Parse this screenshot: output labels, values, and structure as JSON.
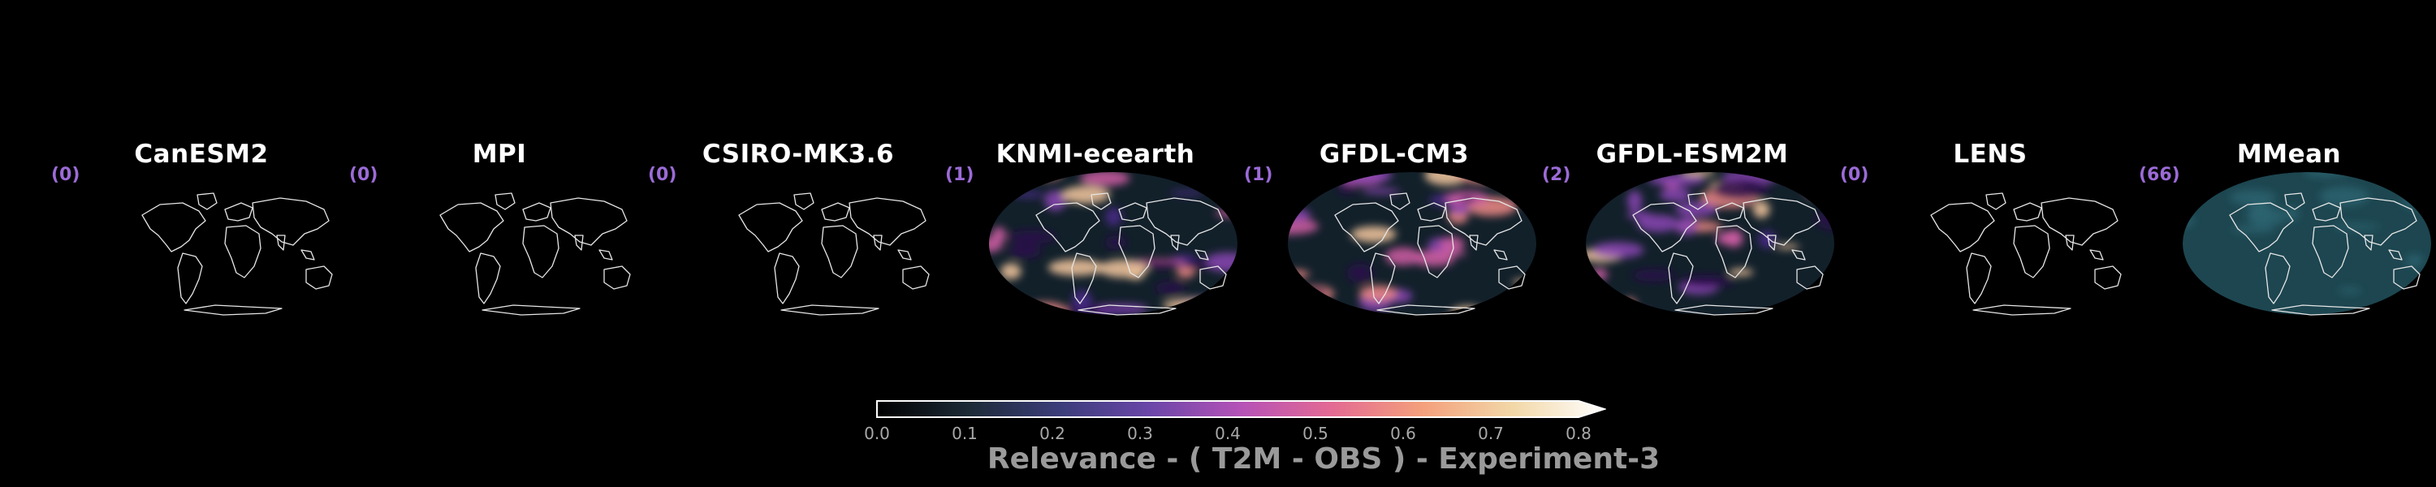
{
  "panels": [
    {
      "title": "CanESM2",
      "count": "(0)",
      "heat": false
    },
    {
      "title": "MPI",
      "count": "(0)",
      "heat": false
    },
    {
      "title": "CSIRO-MK3.6",
      "count": "(0)",
      "heat": false
    },
    {
      "title": "KNMI-ecearth",
      "count": "(1)",
      "heat": true
    },
    {
      "title": "GFDL-CM3",
      "count": "(1)",
      "heat": true
    },
    {
      "title": "GFDL-ESM2M",
      "count": "(2)",
      "heat": true
    },
    {
      "title": "LENS",
      "count": "(0)",
      "heat": false
    },
    {
      "title": "MMean",
      "count": "(66)",
      "heat": true
    }
  ],
  "colorbar": {
    "ticks": [
      "0.0",
      "0.1",
      "0.2",
      "0.3",
      "0.4",
      "0.5",
      "0.6",
      "0.7",
      "0.8"
    ],
    "label": "Relevance - ( T2M - OBS ) - Experiment-3",
    "colors": [
      "#000000",
      "#1c2a36",
      "#3b3d7a",
      "#6a46a8",
      "#b552b7",
      "#e36a93",
      "#f4a07c",
      "#f2d8a8",
      "#ffffff"
    ]
  }
}
